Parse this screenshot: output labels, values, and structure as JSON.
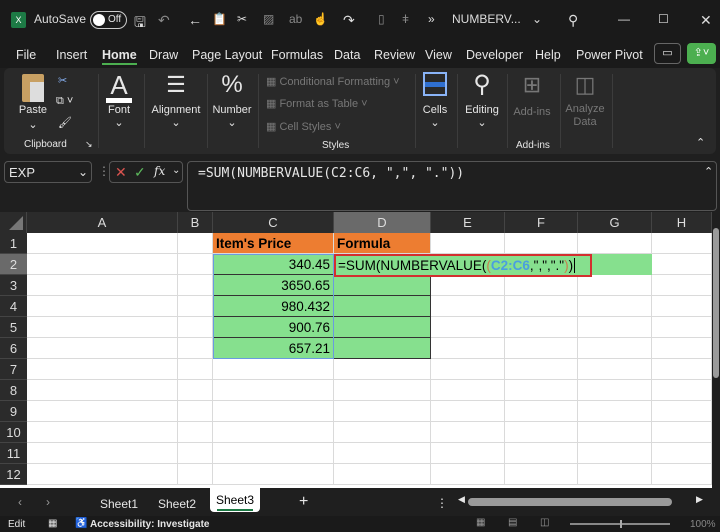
{
  "titlebar": {
    "autosave_label": "AutoSave",
    "autosave_state": "Off",
    "filename": "NUMBERV...",
    "more": "»"
  },
  "menu": [
    "File",
    "Insert",
    "Home",
    "Draw",
    "Page Layout",
    "Formulas",
    "Data",
    "Review",
    "View",
    "Developer",
    "Help",
    "Power Pivot"
  ],
  "active_menu": "Home",
  "ribbon": {
    "paste": "Paste",
    "clipboard": "Clipboard",
    "font": "Font",
    "alignment": "Alignment",
    "number": "Number",
    "cond_format": "Conditional Formatting",
    "format_table": "Format as Table",
    "cell_styles": "Cell Styles",
    "styles": "Styles",
    "cells": "Cells",
    "editing": "Editing",
    "addins": "Add-ins",
    "addins_group": "Add-ins",
    "analyze": "Analyze Data"
  },
  "formula_bar": {
    "name_box": "EXP",
    "fx": "fx",
    "formula": "=SUM(NUMBERVALUE(C2:C6, \",\", \".\"))"
  },
  "columns": [
    "A",
    "B",
    "C",
    "D",
    "E",
    "F",
    "G",
    "H"
  ],
  "rows": [
    "1",
    "2",
    "3",
    "4",
    "5",
    "6",
    "7",
    "8",
    "9",
    "10",
    "11",
    "12"
  ],
  "cells": {
    "C1": "Item's Price",
    "D1": "Formula",
    "C2": "340.45",
    "C3": "3650.65",
    "C4": "980.432",
    "C5": "900.76",
    "C6": "657.21"
  },
  "edit_formula": {
    "prefix": "=SUM(NUMBERVALUE(",
    "paren": "(",
    "range": "C2:C6",
    "args": ",\",\",\".\"",
    "close1": ")",
    "close2": ")"
  },
  "sheets": [
    "Sheet1",
    "Sheet2",
    "Sheet3"
  ],
  "active_sheet": "Sheet3",
  "status": {
    "mode": "Edit",
    "accessibility": "Accessibility: Investigate",
    "zoom": "100%"
  },
  "colors": {
    "header_orange": "#ed7d31",
    "cell_green": "#86e08e",
    "accent_green": "#4caf50",
    "edit_border": "#d32f2f",
    "range_blue": "#4a9ee0"
  }
}
